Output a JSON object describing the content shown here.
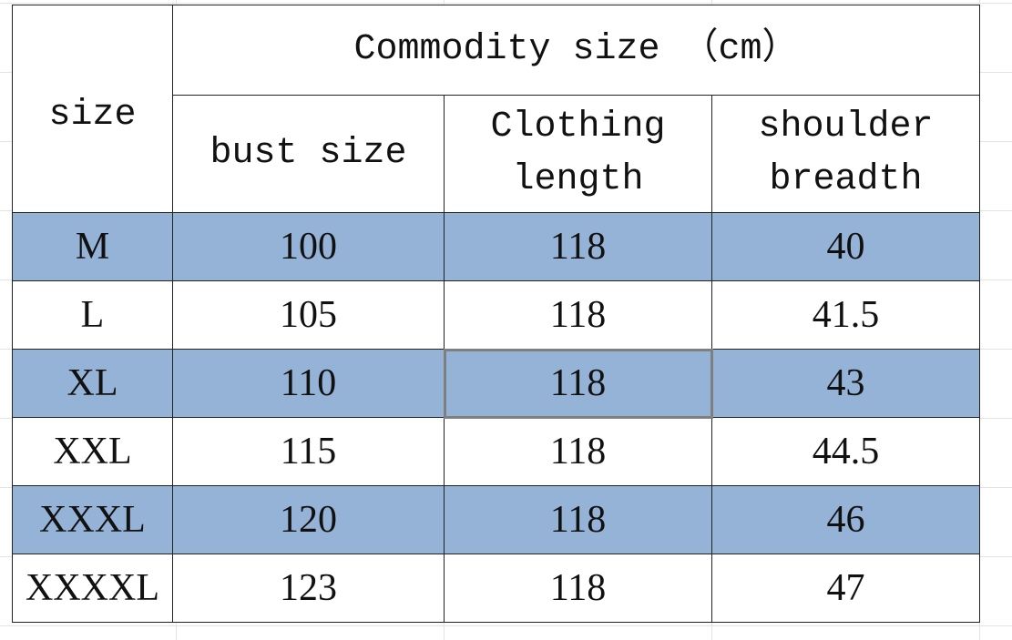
{
  "table": {
    "row_header": "size",
    "title": "Commodity size （cm）",
    "columns": [
      "bust size",
      "Clothing length",
      "shoulder breadth"
    ],
    "rows": [
      [
        "M",
        100,
        118,
        40
      ],
      [
        "L",
        105,
        118,
        41.5
      ],
      [
        "XL",
        110,
        118,
        43
      ],
      [
        "XXL",
        115,
        118,
        44.5
      ],
      [
        "XXXL",
        120,
        118,
        46
      ],
      [
        "XXXXL",
        123,
        118,
        47
      ]
    ]
  }
}
